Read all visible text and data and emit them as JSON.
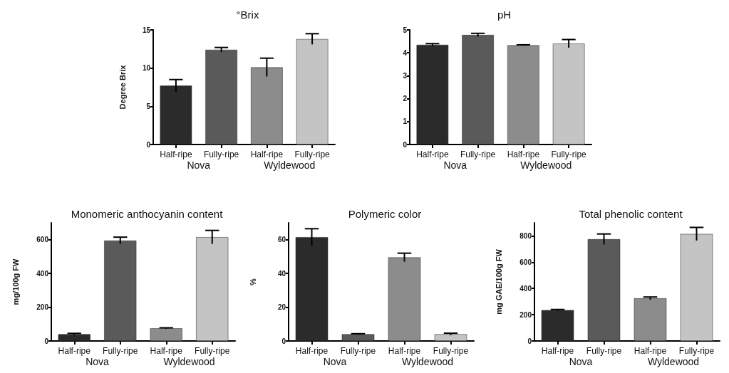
{
  "chart_data": [
    {
      "type": "bar",
      "title": "°Brix",
      "ylabel": "Degree Brix",
      "categories": [
        "Half-ripe",
        "Fully-ripe",
        "Half-ripe",
        "Fully-ripe"
      ],
      "values": [
        7.7,
        12.4,
        10.1,
        13.8
      ],
      "errors": [
        0.8,
        0.3,
        1.2,
        0.7
      ],
      "colors": [
        "#2b2b2b",
        "#5a5a5a",
        "#8c8c8c",
        "#c4c4c4"
      ],
      "ylim": [
        0,
        15
      ],
      "yticks": [
        0,
        5,
        10,
        15
      ],
      "grid": false,
      "annotations": [
        "Nova",
        "Wyldewood"
      ]
    },
    {
      "type": "bar",
      "title": "pH",
      "categories": [
        "Half-ripe",
        "Fully-ripe",
        "Half-ripe",
        "Fully-ripe"
      ],
      "values": [
        4.35,
        4.78,
        4.33,
        4.4
      ],
      "errors": [
        0.05,
        0.07,
        0.02,
        0.18
      ],
      "colors": [
        "#2b2b2b",
        "#5a5a5a",
        "#8c8c8c",
        "#c4c4c4"
      ],
      "ylim": [
        0,
        5
      ],
      "yticks": [
        0,
        1,
        2,
        3,
        4,
        5
      ],
      "grid": false,
      "annotations": [
        "Nova",
        "Wyldewood"
      ]
    },
    {
      "type": "bar",
      "title": "Monomeric anthocyanin content",
      "ylabel": "mg/100g FW",
      "categories": [
        "Half-ripe",
        "Fully-ripe",
        "Half-ripe",
        "Fully-ripe"
      ],
      "values": [
        40,
        595,
        75,
        615
      ],
      "errors": [
        5,
        20,
        3,
        40
      ],
      "colors": [
        "#2b2b2b",
        "#5a5a5a",
        "#8c8c8c",
        "#c4c4c4"
      ],
      "ylim": [
        0,
        700
      ],
      "yticks": [
        0,
        200,
        400,
        600
      ],
      "grid": false,
      "annotations": [
        "Nova",
        "Wyldewood"
      ]
    },
    {
      "type": "bar",
      "title": "Polymeric color",
      "ylabel": "%",
      "categories": [
        "Half-ripe",
        "Fully-ripe",
        "Half-ripe",
        "Fully-ripe"
      ],
      "values": [
        61.5,
        4,
        49.5,
        4
      ],
      "errors": [
        5,
        0.3,
        2.5,
        0.6
      ],
      "colors": [
        "#2b2b2b",
        "#5a5a5a",
        "#8c8c8c",
        "#c4c4c4"
      ],
      "ylim": [
        0,
        70
      ],
      "yticks": [
        0,
        20,
        40,
        60
      ],
      "grid": false,
      "annotations": [
        "Nova",
        "Wyldewood"
      ]
    },
    {
      "type": "bar",
      "title": "Total phenolic content",
      "ylabel": "mg GAE/100g FW",
      "categories": [
        "Half-ripe",
        "Fully-ripe",
        "Half-ripe",
        "Fully-ripe"
      ],
      "values": [
        235,
        775,
        325,
        815
      ],
      "errors": [
        5,
        40,
        10,
        50
      ],
      "colors": [
        "#2b2b2b",
        "#5a5a5a",
        "#8c8c8c",
        "#c4c4c4"
      ],
      "ylim": [
        0,
        900
      ],
      "yticks": [
        0,
        200,
        400,
        600,
        800
      ],
      "grid": false,
      "annotations": [
        "Nova",
        "Wyldewood"
      ]
    }
  ]
}
